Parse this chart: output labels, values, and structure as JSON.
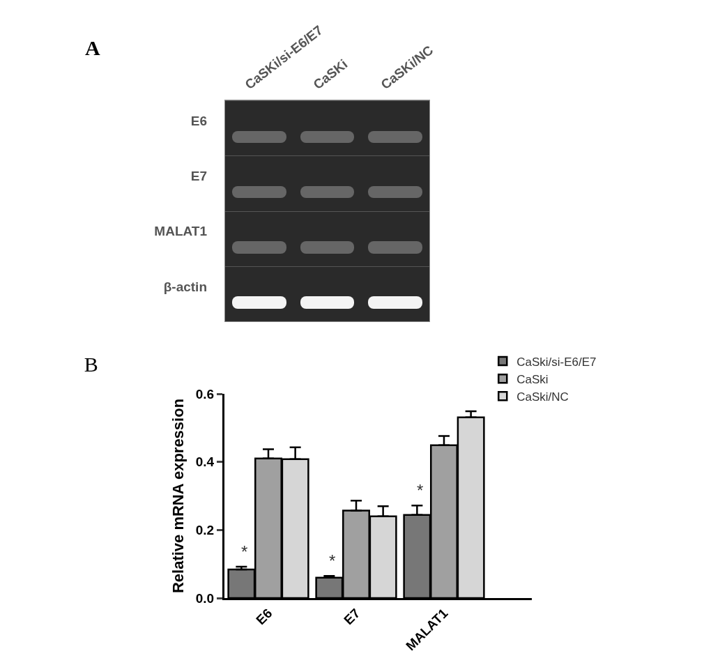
{
  "chart_data": [
    {
      "type": "other",
      "title": "A",
      "categories": [
        "CaSKi/si-E6/E7",
        "CaSKi",
        "CaSKi/NC"
      ],
      "y_categories": [
        "E6",
        "E7",
        "MALAT1",
        "β-actin"
      ]
    },
    {
      "type": "bar",
      "title": "B",
      "ylabel": "Relative mRNA expression",
      "categories": [
        "E6",
        "E7",
        "MALAT1"
      ],
      "ylim": [
        0,
        0.6
      ],
      "yticks": [
        {
          "value": 0,
          "label": "0.0"
        },
        0.2,
        0.4,
        0.6
      ],
      "legend": "top right",
      "grid": false,
      "series": [
        {
          "name": "CaSki/si-E6/E7",
          "color": "#777777",
          "values": [
            0.084,
            0.06,
            0.244
          ],
          "errors": [
            [
              0.084,
              0.092
            ],
            [
              0.06,
              0.065
            ],
            [
              0.244,
              0.272
            ]
          ]
        },
        {
          "name": "CaSki",
          "color": "#a0a0a0",
          "values": [
            0.41,
            0.257,
            0.449
          ],
          "errors": [
            [
              0.41,
              0.437
            ],
            [
              0.257,
              0.286
            ],
            [
              0.449,
              0.476
            ]
          ]
        },
        {
          "name": "CaSki/NC",
          "color": "#d6d6d6",
          "values": [
            0.408,
            0.24,
            0.531
          ],
          "errors": [
            [
              0.408,
              0.443
            ],
            [
              0.24,
              0.27
            ],
            [
              0.531,
              0.549
            ]
          ]
        }
      ],
      "annotations": [
        "*",
        "*",
        "*"
      ]
    }
  ]
}
